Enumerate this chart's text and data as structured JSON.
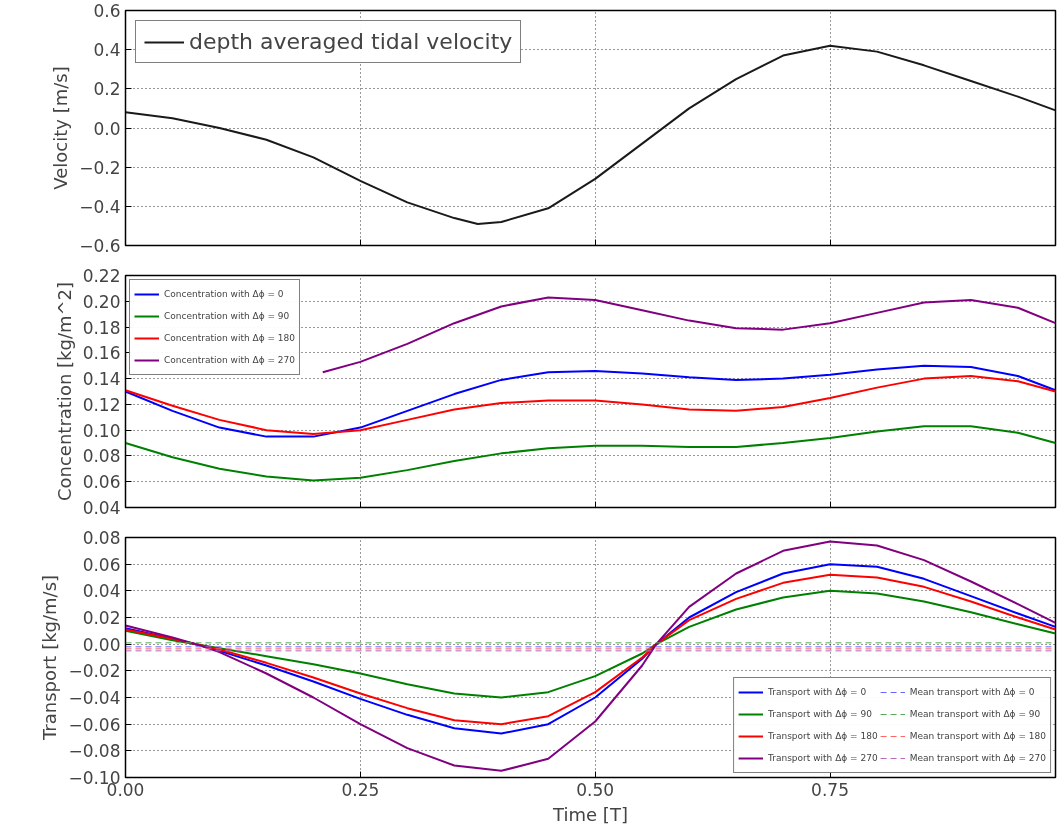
{
  "chart_data": [
    {
      "type": "line",
      "ylabel": "Velocity [m/s]",
      "xlim": [
        0,
        0.99
      ],
      "xticks": [
        0,
        0.25,
        0.5,
        0.75
      ],
      "ylim": [
        -0.6,
        0.6
      ],
      "yticks": [
        -0.6,
        -0.4,
        -0.2,
        {
          "value": 0,
          "label": "0.0"
        },
        0.2,
        0.4,
        0.6
      ],
      "grid": true,
      "legend": "top left",
      "tick_labels": "y",
      "line_style": "solid",
      "x": [
        0,
        0.05,
        0.1,
        0.15,
        0.2,
        0.25,
        0.3,
        0.35,
        0.375,
        0.4,
        0.45,
        0.5,
        0.55,
        0.6,
        0.65,
        0.7,
        0.75,
        0.8,
        0.85,
        0.9,
        0.95,
        0.99
      ],
      "series": [
        {
          "name": "depth averaged tidal velocity",
          "color": "#1a1a1a",
          "values": [
            0.08,
            0.05,
            0.0,
            -0.06,
            -0.15,
            -0.27,
            -0.38,
            -0.46,
            -0.49,
            -0.48,
            -0.41,
            -0.26,
            -0.08,
            0.1,
            0.25,
            0.37,
            0.42,
            0.39,
            0.32,
            0.24,
            0.16,
            0.09
          ]
        }
      ]
    },
    {
      "type": "line",
      "ylabel": "Concentration [kg/m^2]",
      "xlim": [
        0,
        0.99
      ],
      "xticks": [
        0,
        0.25,
        0.5,
        0.75
      ],
      "ylim": [
        0.04,
        0.22
      ],
      "yticks": [
        0.04,
        0.06,
        0.08,
        {
          "value": 0.1,
          "label": "0.10"
        },
        0.12,
        0.14,
        0.16,
        0.18,
        {
          "value": 0.2,
          "label": "0.20"
        },
        0.22
      ],
      "grid": true,
      "legend": "top left",
      "tick_labels": "y",
      "line_style": "solid",
      "x": [
        0,
        0.05,
        0.1,
        0.15,
        0.2,
        0.25,
        0.3,
        0.35,
        0.4,
        0.45,
        0.5,
        0.55,
        0.6,
        0.65,
        0.7,
        0.75,
        0.8,
        0.85,
        0.9,
        0.95,
        0.99
      ],
      "series": [
        {
          "name": "Concentration with Δϕ = 0",
          "color": "#0000ff",
          "values": [
            0.13,
            0.115,
            0.102,
            0.095,
            0.095,
            0.102,
            0.115,
            0.128,
            0.139,
            0.145,
            0.146,
            0.144,
            0.141,
            0.139,
            0.14,
            0.143,
            0.147,
            0.15,
            0.149,
            0.142,
            0.131
          ]
        },
        {
          "name": "Concentration with Δϕ = 90",
          "color": "#008000",
          "values": [
            0.09,
            0.079,
            0.07,
            0.064,
            0.061,
            0.063,
            0.069,
            0.076,
            0.082,
            0.086,
            0.088,
            0.088,
            0.087,
            0.087,
            0.09,
            0.094,
            0.099,
            0.103,
            0.103,
            0.098,
            0.09
          ]
        },
        {
          "name": "Concentration with Δϕ = 180",
          "color": "#ff0000",
          "values": [
            0.131,
            0.119,
            0.108,
            0.1,
            0.097,
            0.1,
            0.108,
            0.116,
            0.121,
            0.123,
            0.123,
            0.12,
            0.116,
            0.115,
            0.118,
            0.125,
            0.133,
            0.14,
            0.142,
            0.138,
            0.13
          ]
        },
        {
          "name": "Concentration with Δϕ = 270",
          "color": "#800080",
          "x": [
            0.21,
            0.25,
            0.3,
            0.35,
            0.4,
            0.45,
            0.5,
            0.55,
            0.6,
            0.65,
            0.7,
            0.75,
            0.8,
            0.85,
            0.9,
            0.95,
            0.99
          ],
          "values": [
            0.145,
            0.153,
            0.167,
            0.183,
            0.196,
            0.203,
            0.201,
            0.193,
            0.185,
            0.179,
            0.178,
            0.183,
            0.191,
            0.199,
            0.201,
            0.195,
            0.183
          ]
        }
      ]
    },
    {
      "type": "line",
      "xlabel": "Time [T]",
      "ylabel": "Transport [kg/m/s]",
      "xlim": [
        0,
        0.99
      ],
      "xticks": [
        {
          "value": 0,
          "label": "0.00"
        },
        0.25,
        {
          "value": 0.5,
          "label": "0.50"
        },
        0.75
      ],
      "ylim": [
        -0.1,
        0.08
      ],
      "yticks": [
        {
          "value": -0.1,
          "label": "−0.10"
        },
        {
          "value": -0.08,
          "label": "−0.08"
        },
        {
          "value": -0.06,
          "label": "−0.06"
        },
        {
          "value": -0.04,
          "label": "−0.04"
        },
        {
          "value": -0.02,
          "label": "−0.02"
        },
        {
          "value": 0,
          "label": "0.00"
        },
        {
          "value": 0.02,
          "label": "0.02"
        },
        {
          "value": 0.04,
          "label": "0.04"
        },
        {
          "value": 0.06,
          "label": "0.06"
        },
        {
          "value": 0.08,
          "label": "0.08"
        }
      ],
      "grid": true,
      "legend": "bottom right",
      "line_style": "solid",
      "x": [
        0,
        0.05,
        0.075,
        0.1,
        0.15,
        0.2,
        0.25,
        0.3,
        0.35,
        0.4,
        0.45,
        0.5,
        0.55,
        0.565,
        0.6,
        0.65,
        0.7,
        0.75,
        0.8,
        0.85,
        0.9,
        0.95,
        0.99
      ],
      "series": [
        {
          "name": "Transport with Δϕ = 0",
          "color": "#0000ff",
          "values": [
            0.012,
            0.004,
            0.0,
            -0.005,
            -0.016,
            -0.028,
            -0.041,
            -0.053,
            -0.063,
            -0.067,
            -0.06,
            -0.04,
            -0.011,
            0.0,
            0.02,
            0.039,
            0.053,
            0.06,
            0.058,
            0.049,
            0.036,
            0.023,
            0.013
          ]
        },
        {
          "name": "Transport with Δϕ = 90",
          "color": "#008000",
          "values": [
            0.01,
            0.003,
            0.0,
            -0.003,
            -0.009,
            -0.015,
            -0.022,
            -0.03,
            -0.037,
            -0.04,
            -0.036,
            -0.024,
            -0.007,
            0.0,
            0.013,
            0.026,
            0.035,
            0.04,
            0.038,
            0.032,
            0.024,
            0.015,
            0.008
          ]
        },
        {
          "name": "Transport with Δϕ = 180",
          "color": "#ff0000",
          "values": [
            0.011,
            0.004,
            0.0,
            -0.004,
            -0.014,
            -0.025,
            -0.037,
            -0.048,
            -0.057,
            -0.06,
            -0.054,
            -0.036,
            -0.01,
            0.0,
            0.018,
            0.034,
            0.046,
            0.052,
            0.05,
            0.043,
            0.032,
            0.02,
            0.011
          ]
        },
        {
          "name": "Transport with Δϕ = 270",
          "color": "#800080",
          "values": [
            0.014,
            0.005,
            0.0,
            -0.006,
            -0.022,
            -0.04,
            -0.06,
            -0.078,
            -0.091,
            -0.095,
            -0.086,
            -0.058,
            -0.016,
            0.0,
            0.028,
            0.053,
            0.07,
            0.077,
            0.074,
            0.063,
            0.047,
            0.03,
            0.016
          ]
        },
        {
          "name": "Mean transport with Δϕ = 0",
          "color": "#6666ff",
          "line_style": "dashed",
          "x": [
            0,
            0.99
          ],
          "values": [
            -0.002,
            -0.002
          ]
        },
        {
          "name": "Mean transport with Δϕ = 90",
          "color": "#55aa55",
          "line_style": "dashed",
          "x": [
            0,
            0.99
          ],
          "values": [
            0.001,
            0.001
          ]
        },
        {
          "name": "Mean transport with Δϕ = 180",
          "color": "#ff6666",
          "line_style": "dashed",
          "x": [
            0,
            0.99
          ],
          "values": [
            -0.0035,
            -0.0035
          ]
        },
        {
          "name": "Mean transport with Δϕ = 270",
          "color": "#bb66bb",
          "line_style": "dashed",
          "x": [
            0,
            0.99
          ],
          "values": [
            -0.005,
            -0.005
          ]
        }
      ]
    }
  ]
}
